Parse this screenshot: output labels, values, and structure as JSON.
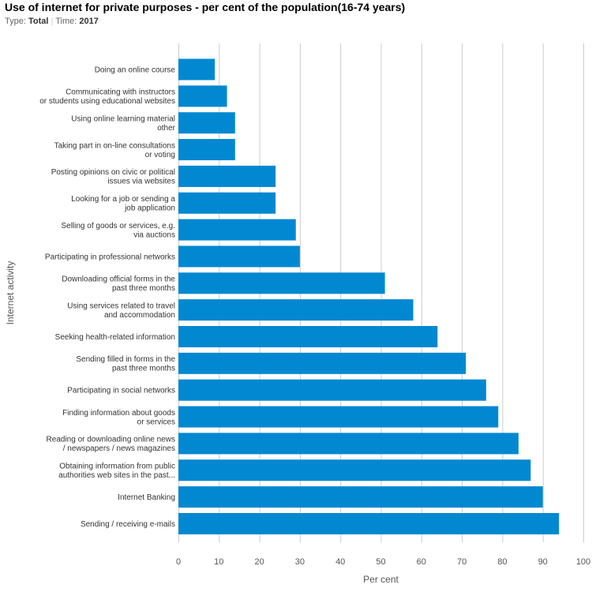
{
  "header": {
    "title": "Use of internet for private purposes - per cent of the population(16-74 years)",
    "type_label": "Type:",
    "type_value": "Total",
    "separator": "|",
    "time_label": "Time:",
    "time_value": "2017"
  },
  "colors": {
    "bar": "#0288d1",
    "grid": "#cccccc"
  },
  "chart_data": {
    "type": "bar",
    "orientation": "horizontal",
    "title": "Use of internet for private purposes - per cent of the population(16-74 years)",
    "xlabel": "Per cent",
    "ylabel": "Internet activity",
    "xlim": [
      0,
      100
    ],
    "xticks": [
      0,
      10,
      20,
      30,
      40,
      50,
      60,
      70,
      80,
      90,
      100
    ],
    "grid": true,
    "categories": [
      [
        "Doing an online course"
      ],
      [
        "Communicating with instructors",
        "or students using educational websites"
      ],
      [
        "Using online learning material",
        "other"
      ],
      [
        "Taking part in on-line consultations",
        "or voting"
      ],
      [
        "Posting opinions on civic or political",
        "issues via websites"
      ],
      [
        "Looking for a job or sending a",
        "job application"
      ],
      [
        "Selling of goods or services, e.g.",
        "via auctions"
      ],
      [
        "Participating in professional networks"
      ],
      [
        "Downloading official forms in the",
        "past three months"
      ],
      [
        "Using services related to travel",
        "and accommodation"
      ],
      [
        "Seeking health-related information"
      ],
      [
        "Sending filled in forms in the",
        "past three months"
      ],
      [
        "Participating in social networks"
      ],
      [
        "Finding information about goods",
        "or services"
      ],
      [
        "Reading or downloading online news",
        "/ newspapers / news magazines"
      ],
      [
        "Obtaining information from public",
        "authorities web sites in the past..."
      ],
      [
        "Internet Banking"
      ],
      [
        "Sending / receiving e-mails"
      ]
    ],
    "values": [
      9,
      12,
      14,
      14,
      24,
      24,
      29,
      30,
      51,
      58,
      64,
      71,
      76,
      79,
      84,
      87,
      90,
      94
    ]
  }
}
